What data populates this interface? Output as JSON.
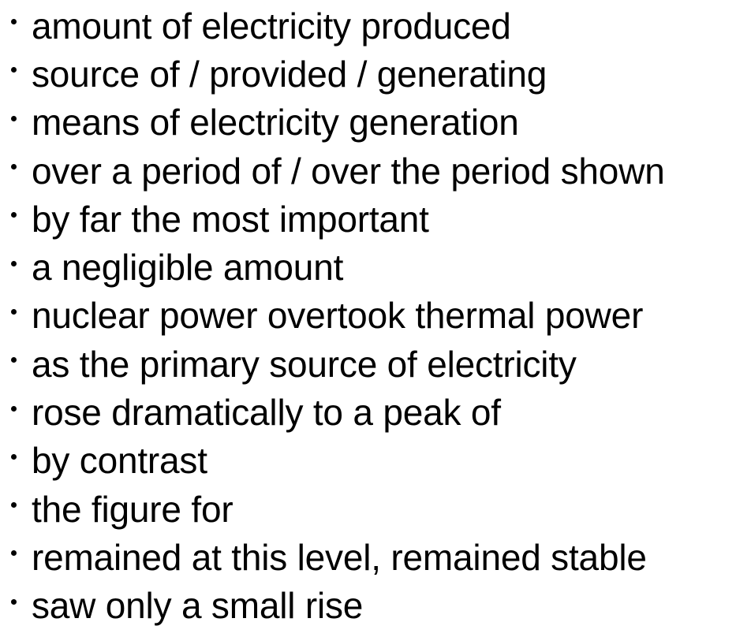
{
  "phrases": [
    "amount of electricity produced",
    "source of / provided / generating",
    "means of electricity generation",
    "over a period of / over the period shown",
    "by far the most important",
    "a negligible amount",
    "nuclear power overtook thermal power",
    "as the primary source of electricity",
    "rose dramatically to a peak of",
    "by contrast",
    "the figure for",
    "remained at this level, remained stable",
    "saw only a small rise"
  ]
}
